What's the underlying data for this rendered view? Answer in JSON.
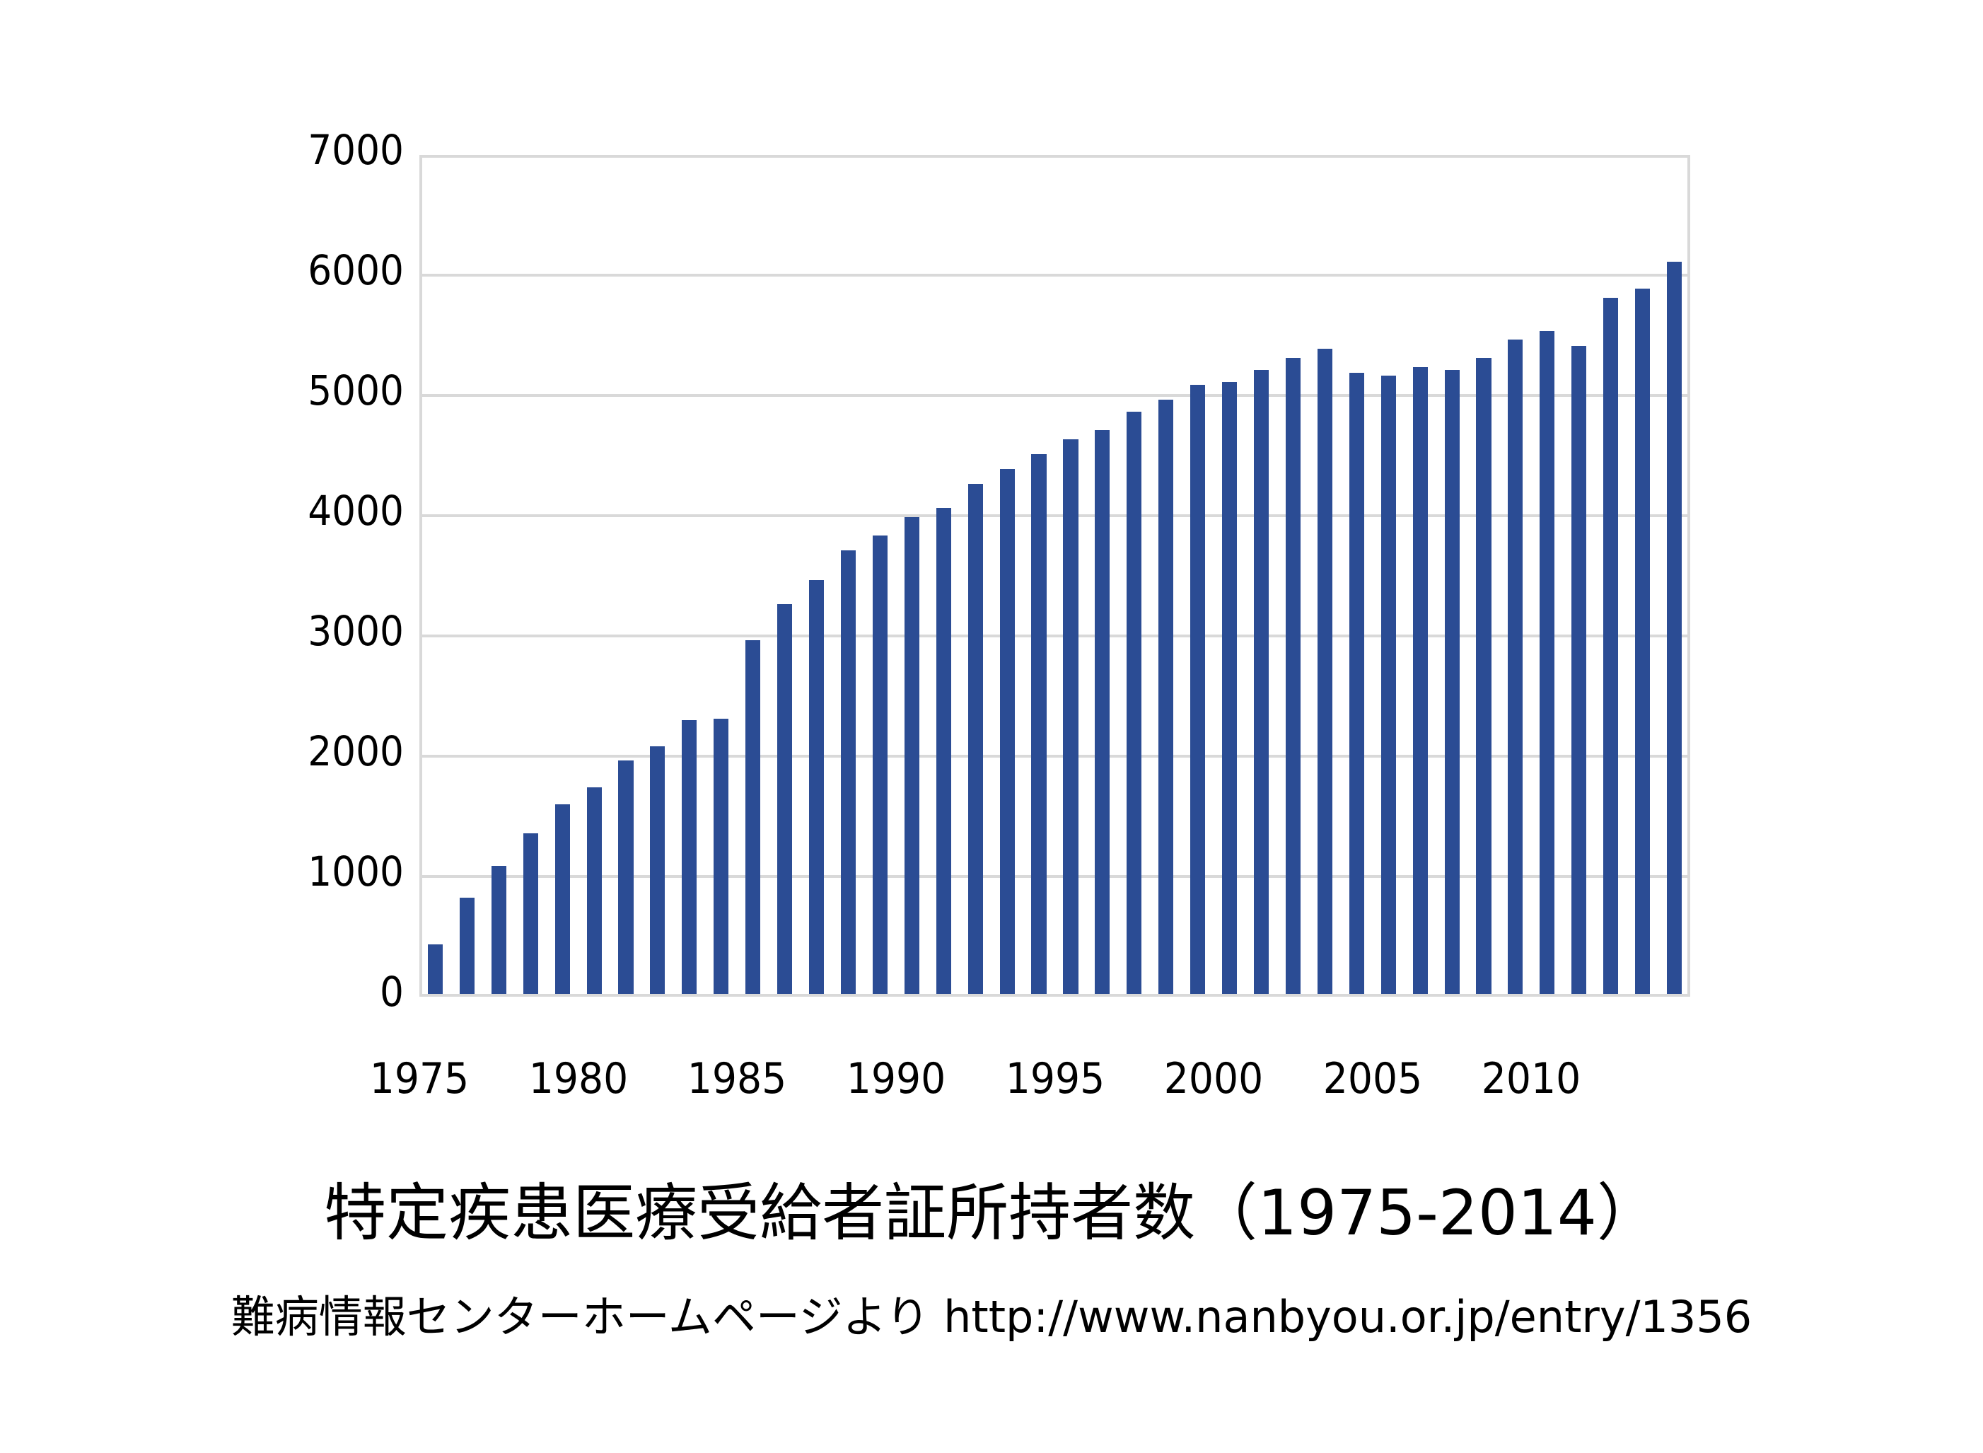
{
  "chart_data": {
    "type": "bar",
    "title": "特定疾患医療受給者証所持者数（1975-2014）",
    "subtitle": "難病情報センターホームページより http://www.nanbyou.or.jp/entry/1356",
    "xlabel": "",
    "ylabel": "",
    "ylim": [
      0,
      7000
    ],
    "yticks": [
      0,
      1000,
      2000,
      3000,
      4000,
      5000,
      6000,
      7000
    ],
    "xtick_labels": [
      "1975",
      "1980",
      "1985",
      "1990",
      "1995",
      "2000",
      "2005",
      "2010"
    ],
    "grid": true,
    "legend": null,
    "bar_color": "#2b4c94",
    "categories": [
      "1975",
      "1976",
      "1977",
      "1978",
      "1979",
      "1980",
      "1981",
      "1982",
      "1983",
      "1984",
      "1985",
      "1986",
      "1987",
      "1988",
      "1989",
      "1990",
      "1991",
      "1992",
      "1993",
      "1994",
      "1995",
      "1996",
      "1997",
      "1998",
      "1999",
      "2000",
      "2001",
      "2002",
      "2003",
      "2004",
      "2005",
      "2006",
      "2007",
      "2008",
      "2009",
      "2010",
      "2011",
      "2012",
      "2013",
      "2014"
    ],
    "values": [
      436,
      824,
      1091,
      1357,
      1599,
      1744,
      1963,
      2083,
      2300,
      2314,
      2962,
      3262,
      3462,
      3712,
      3836,
      3988,
      4062,
      4262,
      4386,
      4512,
      4636,
      4712,
      4862,
      4962,
      5086,
      5112,
      5212,
      5312,
      5386,
      5186,
      5162,
      5236,
      5212,
      5312,
      5462,
      5536,
      5412,
      5812,
      5886,
      6112
    ]
  },
  "title": "特定疾患医療受給者証所持者数（1975-2014）",
  "source": "難病情報センターホームページより http://www.nanbyou.or.jp/entry/1356"
}
